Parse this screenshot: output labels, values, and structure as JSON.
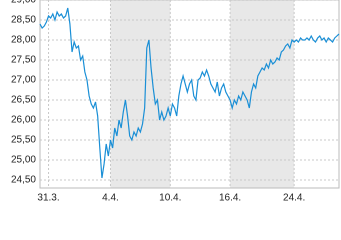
{
  "chart_data": {
    "type": "line",
    "values": [
      28.4,
      28.3,
      28.35,
      28.45,
      28.6,
      28.55,
      28.65,
      28.5,
      28.7,
      28.6,
      28.65,
      28.55,
      28.6,
      28.8,
      28.4,
      27.7,
      27.95,
      27.8,
      27.85,
      27.5,
      27.6,
      27.2,
      27.0,
      26.6,
      26.4,
      26.3,
      26.45,
      26.1,
      25.3,
      24.55,
      24.9,
      25.4,
      25.1,
      25.5,
      25.3,
      25.8,
      25.6,
      26.0,
      25.8,
      26.2,
      26.5,
      26.1,
      25.6,
      25.5,
      25.7,
      25.6,
      25.8,
      25.7,
      25.9,
      26.3,
      27.8,
      28.0,
      27.3,
      26.8,
      26.4,
      26.5,
      26.0,
      26.2,
      26.0,
      26.1,
      26.3,
      26.1,
      26.4,
      26.3,
      26.1,
      26.6,
      26.9,
      27.1,
      26.9,
      26.7,
      26.9,
      27.0,
      26.6,
      26.5,
      27.0,
      27.05,
      27.2,
      27.1,
      27.25,
      27.1,
      26.9,
      26.8,
      26.7,
      26.95,
      26.6,
      26.8,
      26.9,
      26.7,
      26.6,
      26.5,
      26.3,
      26.5,
      26.4,
      26.6,
      26.5,
      26.7,
      26.6,
      26.5,
      26.3,
      26.7,
      26.9,
      26.8,
      27.1,
      27.2,
      27.3,
      27.25,
      27.4,
      27.3,
      27.5,
      27.4,
      27.45,
      27.55,
      27.5,
      27.7,
      27.75,
      27.85,
      27.9,
      27.8,
      28.0,
      27.95,
      28.0,
      27.95,
      28.05,
      28.0,
      28.0,
      28.05,
      28.0,
      28.1,
      28.0,
      27.95,
      28.05,
      28.1,
      28.0,
      28.05,
      27.95,
      28.05,
      28.0,
      27.95,
      28.05,
      28.1,
      28.15
    ],
    "color": "#1a8fd6",
    "xlim": [
      0,
      140
    ],
    "xticks": [
      {
        "value": 4,
        "label": "31.3."
      },
      {
        "value": 33,
        "label": "4.4."
      },
      {
        "value": 61,
        "label": "10.4."
      },
      {
        "value": 89,
        "label": "16.4."
      },
      {
        "value": 119,
        "label": "24.4."
      }
    ],
    "ylim": [
      24.3,
      29.0
    ],
    "yticks": [
      {
        "value": 24.5,
        "label": "24,50"
      },
      {
        "value": 25,
        "label": "25,00"
      },
      {
        "value": 25.5,
        "label": "25,50"
      },
      {
        "value": 26,
        "label": "26,00"
      },
      {
        "value": 26.5,
        "label": "26,50"
      },
      {
        "value": 27,
        "label": "27,00"
      },
      {
        "value": 27.5,
        "label": "27,50"
      },
      {
        "value": 28,
        "label": "28,00"
      },
      {
        "value": 28.5,
        "label": "28,50"
      },
      {
        "value": 29,
        "label": "29,00"
      }
    ],
    "grid": true
  }
}
